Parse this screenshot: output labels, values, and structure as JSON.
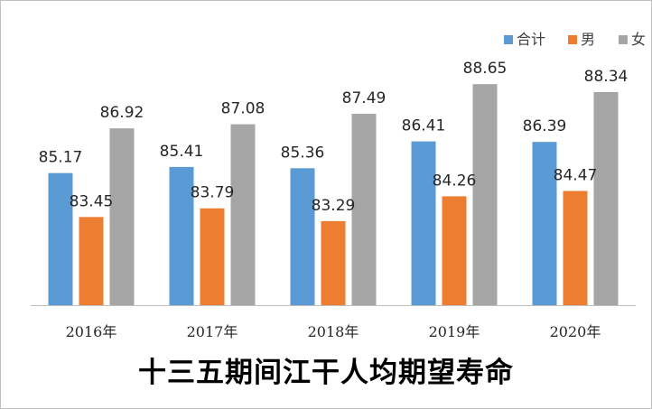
{
  "chart_data": {
    "type": "bar",
    "title": "十三五期间江干人均期望寿命",
    "xlabel": "",
    "ylabel": "",
    "categories": [
      "2016年",
      "2017年",
      "2018年",
      "2019年",
      "2020年"
    ],
    "series": [
      {
        "name": "合计",
        "color": "#5b9bd5",
        "values": [
          85.17,
          85.41,
          85.36,
          86.41,
          86.39
        ]
      },
      {
        "name": "男",
        "color": "#ed7d31",
        "values": [
          83.45,
          83.79,
          83.29,
          84.26,
          84.47
        ]
      },
      {
        "name": "女",
        "color": "#a5a5a5",
        "values": [
          86.92,
          87.08,
          87.49,
          88.65,
          88.34
        ]
      }
    ],
    "value_labels": [
      [
        "85.17",
        "85.41",
        "85.36",
        "86.41",
        "86.39"
      ],
      [
        "83.45",
        "83.79",
        "83.29",
        "84.26",
        "84.47"
      ],
      [
        "86.92",
        "87.08",
        "87.49",
        "88.65",
        "88.34"
      ]
    ],
    "ylim": [
      80,
      90
    ],
    "y_axis_visible": false,
    "grid": false,
    "legend_position": "top-right"
  }
}
